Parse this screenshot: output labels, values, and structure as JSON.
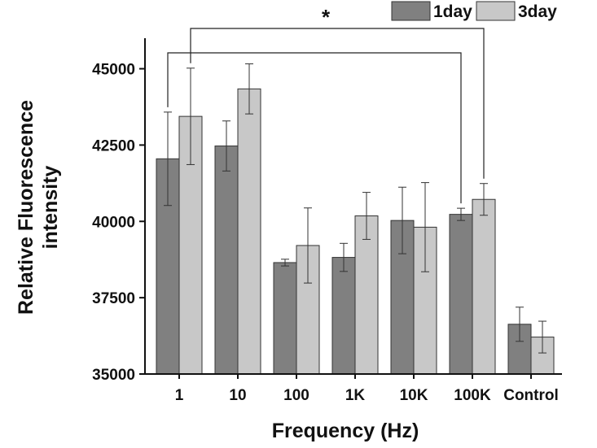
{
  "chart_data": {
    "type": "bar",
    "title": "",
    "xlabel": "Frequency (Hz)",
    "ylabel_lines": [
      "Relative Fluorescence",
      "intensity"
    ],
    "categories": [
      "1",
      "10",
      "100",
      "1K",
      "10K",
      "100K",
      "Control"
    ],
    "ylim": [
      35000,
      46000
    ],
    "yticks": [
      35000,
      37500,
      40000,
      42500,
      45000
    ],
    "series": [
      {
        "name": "1day",
        "color": "#808080",
        "values": [
          42050,
          42470,
          38650,
          38820,
          40030,
          40230,
          36630
        ],
        "errors": [
          1530,
          820,
          110,
          460,
          1090,
          200,
          560
        ]
      },
      {
        "name": "3day",
        "color": "#c8c8c8",
        "values": [
          43440,
          44340,
          39210,
          40180,
          39810,
          40720,
          36210
        ],
        "errors": [
          1580,
          820,
          1230,
          770,
          1460,
          520,
          520
        ]
      }
    ],
    "significance": {
      "label": "*",
      "pairs": [
        {
          "from_category": 0,
          "from_series": 0,
          "to_category": 5,
          "to_series": 0
        },
        {
          "from_category": 0,
          "from_series": 1,
          "to_category": 5,
          "to_series": 1
        }
      ]
    },
    "legend_position": "top-right"
  }
}
